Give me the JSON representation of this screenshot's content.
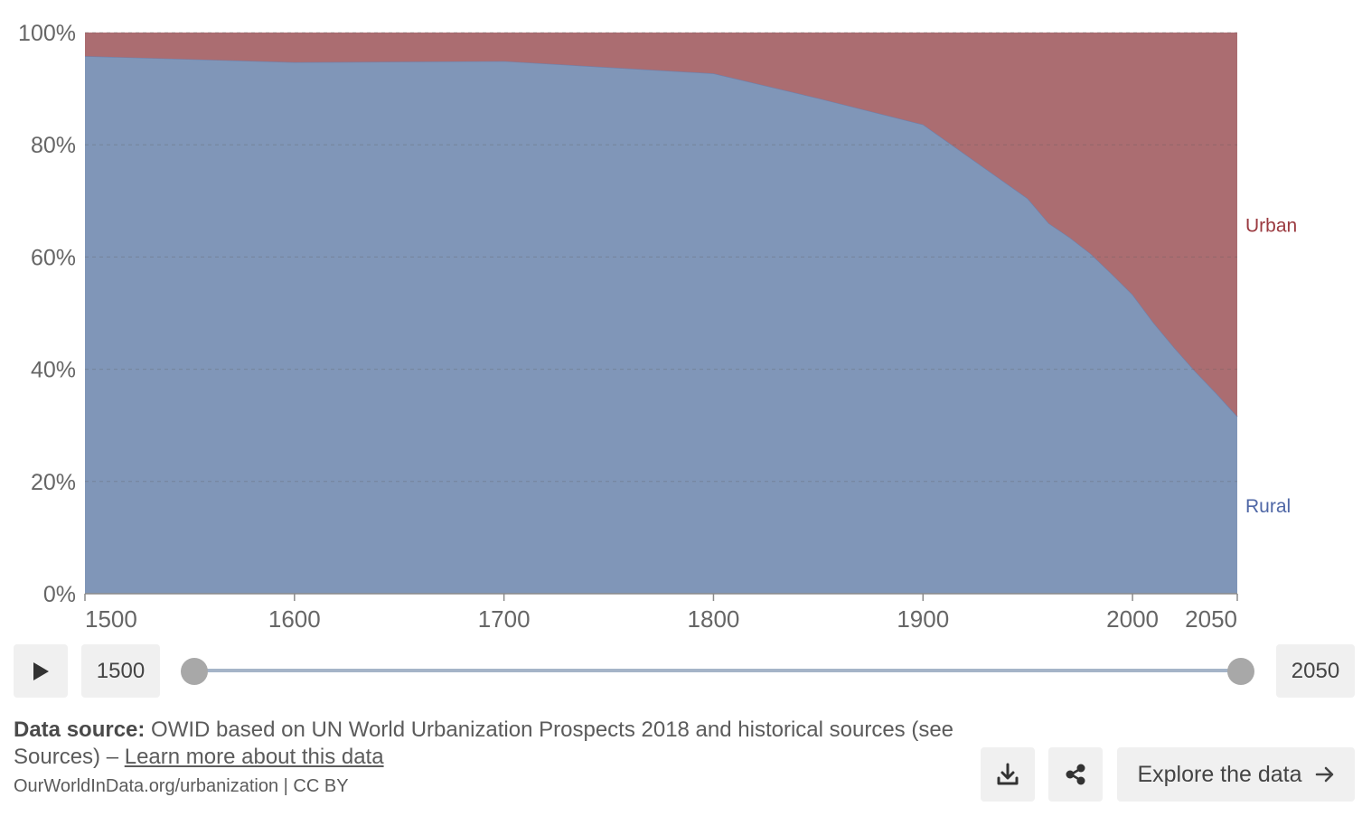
{
  "chart_data": {
    "type": "area",
    "stacked": true,
    "relative": true,
    "x": [
      1500,
      1600,
      1700,
      1800,
      1850,
      1900,
      1950,
      1960,
      1970,
      1980,
      1990,
      2000,
      2010,
      2020,
      2030,
      2040,
      2050
    ],
    "series": [
      {
        "name": "Rural",
        "color": "#8096b8",
        "values": [
          95.8,
          94.7,
          94.9,
          92.7,
          88.3,
          83.6,
          70.4,
          66.0,
          63.5,
          60.6,
          57.0,
          53.3,
          48.3,
          43.8,
          39.6,
          35.7,
          31.6
        ]
      },
      {
        "name": "Urban",
        "color": "#ab6d71",
        "values": [
          4.2,
          5.3,
          5.1,
          7.3,
          11.7,
          16.4,
          29.6,
          34.0,
          36.5,
          39.4,
          43.0,
          46.7,
          51.7,
          56.2,
          60.4,
          64.3,
          68.4
        ]
      }
    ],
    "xticks": [
      {
        "value": 1500,
        "label": "1500"
      },
      {
        "value": 1600,
        "label": "1600"
      },
      {
        "value": 1700,
        "label": "1700"
      },
      {
        "value": 1800,
        "label": "1800"
      },
      {
        "value": 1900,
        "label": "1900"
      },
      {
        "value": 2000,
        "label": "2000"
      },
      {
        "value": 2050,
        "label": "2050"
      }
    ],
    "yticks": [
      {
        "value": 0,
        "label": "0%"
      },
      {
        "value": 20,
        "label": "20%"
      },
      {
        "value": 40,
        "label": "40%"
      },
      {
        "value": 60,
        "label": "60%"
      },
      {
        "value": 80,
        "label": "80%"
      },
      {
        "value": 100,
        "label": "100%"
      }
    ],
    "ylim": [
      0,
      100
    ],
    "xlabel": "",
    "ylabel": "",
    "grid": "horizontal-dashed",
    "legend": "inline-right"
  },
  "timeline": {
    "start_year": "1500",
    "end_year": "2050",
    "play_icon": "play-icon"
  },
  "footer": {
    "source_label": "Data source:",
    "source_text": " OWID based on UN World Urbanization Prospects 2018 and historical sources (see Sources) – ",
    "learn_more": "Learn more about this data",
    "url": "OurWorldInData.org/urbanization | CC BY"
  },
  "actions": {
    "download_icon": "download-icon",
    "share_icon": "share-icon",
    "explore_label": "Explore the data",
    "explore_icon": "arrow-right-icon"
  }
}
